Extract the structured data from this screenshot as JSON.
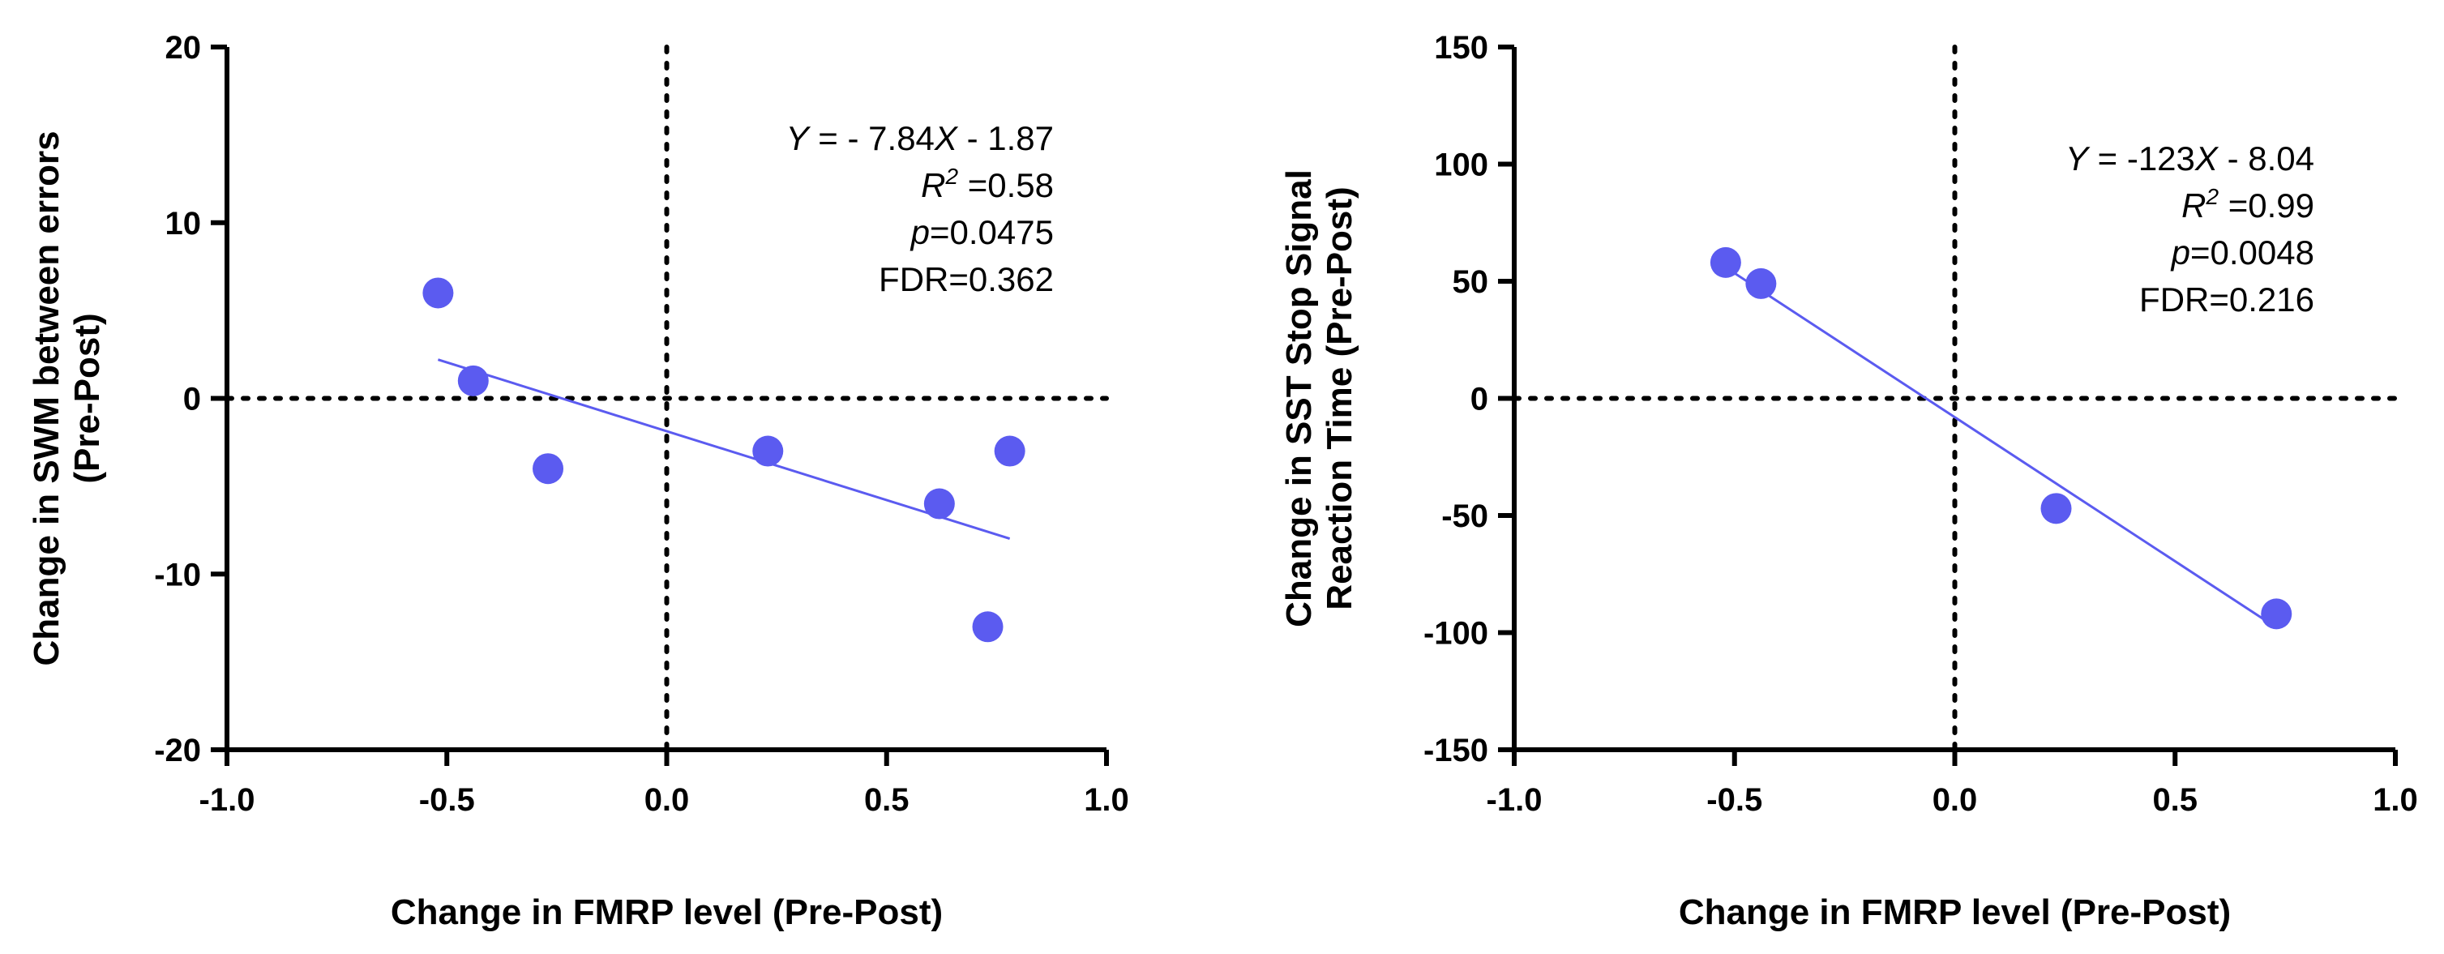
{
  "colors": {
    "marker": "#5b5bf0",
    "fit": "#5b5bf0",
    "axis": "#000000"
  },
  "chart_data": [
    {
      "type": "scatter",
      "xlabel": "Change in FMRP level (Pre-Post)",
      "ylabel": [
        "Change in SWM between errors",
        "(Pre-Post)"
      ],
      "xlim": [
        -1.0,
        1.0
      ],
      "ylim": [
        -20,
        20
      ],
      "xticks": [
        -1.0,
        -0.5,
        0.0,
        0.5,
        1.0
      ],
      "xtick_labels": [
        "-1.0",
        "-0.5",
        "0.0",
        "0.5",
        "1.0"
      ],
      "yticks": [
        -20,
        -10,
        0,
        10,
        20
      ],
      "ytick_labels": [
        "-20",
        "-10",
        "0",
        "10",
        "20"
      ],
      "reference_lines": {
        "x": 0,
        "y": 0,
        "style": "dotted"
      },
      "points": [
        {
          "x": -0.52,
          "y": 6
        },
        {
          "x": -0.44,
          "y": 1
        },
        {
          "x": -0.27,
          "y": -4
        },
        {
          "x": 0.23,
          "y": -3
        },
        {
          "x": 0.62,
          "y": -6
        },
        {
          "x": 0.73,
          "y": -13
        },
        {
          "x": 0.78,
          "y": -3
        }
      ],
      "fit": {
        "slope": -7.84,
        "intercept": -1.87,
        "x_range": [
          -0.52,
          0.78
        ]
      },
      "annotation": {
        "equation": {
          "y": "Y",
          "eq": " =  - 7.84",
          "x": "X",
          "rest": " - 1.87"
        },
        "r2": {
          "r": "R",
          "sup": "2",
          "val": " =0.58"
        },
        "p": {
          "p": "p",
          "val": "=0.0475"
        },
        "fdr": "FDR=0.362"
      }
    },
    {
      "type": "scatter",
      "xlabel": "Change in FMRP level (Pre-Post)",
      "ylabel": [
        "Change in SST Stop Signal",
        "Reaction Time (Pre-Post)"
      ],
      "xlim": [
        -1.0,
        1.0
      ],
      "ylim": [
        -150,
        150
      ],
      "xticks": [
        -1.0,
        -0.5,
        0.0,
        0.5,
        1.0
      ],
      "xtick_labels": [
        "-1.0",
        "-0.5",
        "0.0",
        "0.5",
        "1.0"
      ],
      "yticks": [
        -150,
        -100,
        -50,
        0,
        50,
        100,
        150
      ],
      "ytick_labels": [
        "-150",
        "-100",
        "-50",
        "0",
        "50",
        "100",
        "150"
      ],
      "reference_lines": {
        "x": 0,
        "y": 0,
        "style": "dotted"
      },
      "points": [
        {
          "x": -0.52,
          "y": 58
        },
        {
          "x": -0.44,
          "y": 49
        },
        {
          "x": 0.23,
          "y": -47
        },
        {
          "x": 0.73,
          "y": -92
        }
      ],
      "fit": {
        "slope": -123,
        "intercept": -8.04,
        "x_range": [
          -0.52,
          0.73
        ]
      },
      "annotation": {
        "equation": {
          "y": "Y",
          "eq": " = -123",
          "x": "X",
          "rest": " - 8.04"
        },
        "r2": {
          "r": "R",
          "sup": "2",
          "val": " =0.99"
        },
        "p": {
          "p": "p",
          "val": "=0.0048"
        },
        "fdr": "FDR=0.216"
      }
    }
  ]
}
